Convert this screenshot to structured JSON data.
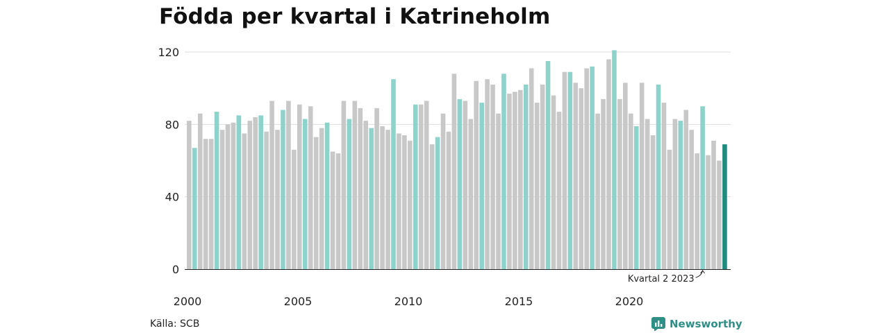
{
  "title": "Födda per kvartal i Katrineholm",
  "source": "Källa: SCB",
  "brand": {
    "name": "Newsworthy",
    "icon": "bar-chart-logo-icon"
  },
  "colors": {
    "other": "#c8c8c8",
    "q2": "#8dd3cc",
    "latest": "#1f8a7e",
    "grid": "#dddddd"
  },
  "chart_data": {
    "type": "bar",
    "title": "Födda per kvartal i Katrineholm",
    "xlabel": "",
    "ylabel": "",
    "ylim": [
      0,
      120
    ],
    "yticks": [
      0,
      40,
      80,
      120
    ],
    "xticks": [
      "2000",
      "2005",
      "2010",
      "2015",
      "2020"
    ],
    "grid": true,
    "start": {
      "year": 2000,
      "quarter": 1
    },
    "annotation": {
      "text": "Kvartal 2 2023",
      "year": 2023,
      "quarter": 2
    },
    "series": [
      {
        "name": "Födda",
        "values": [
          82,
          67,
          86,
          72,
          72,
          87,
          77,
          80,
          81,
          85,
          75,
          82,
          84,
          85,
          76,
          93,
          77,
          88,
          93,
          66,
          91,
          83,
          90,
          73,
          78,
          81,
          65,
          64,
          93,
          83,
          93,
          89,
          82,
          78,
          89,
          79,
          77,
          105,
          75,
          74,
          71,
          91,
          91,
          93,
          69,
          73,
          86,
          76,
          108,
          94,
          93,
          83,
          104,
          92,
          105,
          102,
          86,
          108,
          97,
          98,
          99,
          102,
          111,
          92,
          102,
          115,
          96,
          87,
          109,
          109,
          103,
          100,
          111,
          112,
          86,
          94,
          116,
          121,
          94,
          103,
          86,
          79,
          103,
          83,
          74,
          102,
          92,
          66,
          83,
          82,
          88,
          77,
          64,
          90,
          63,
          71,
          60,
          69
        ]
      }
    ]
  }
}
